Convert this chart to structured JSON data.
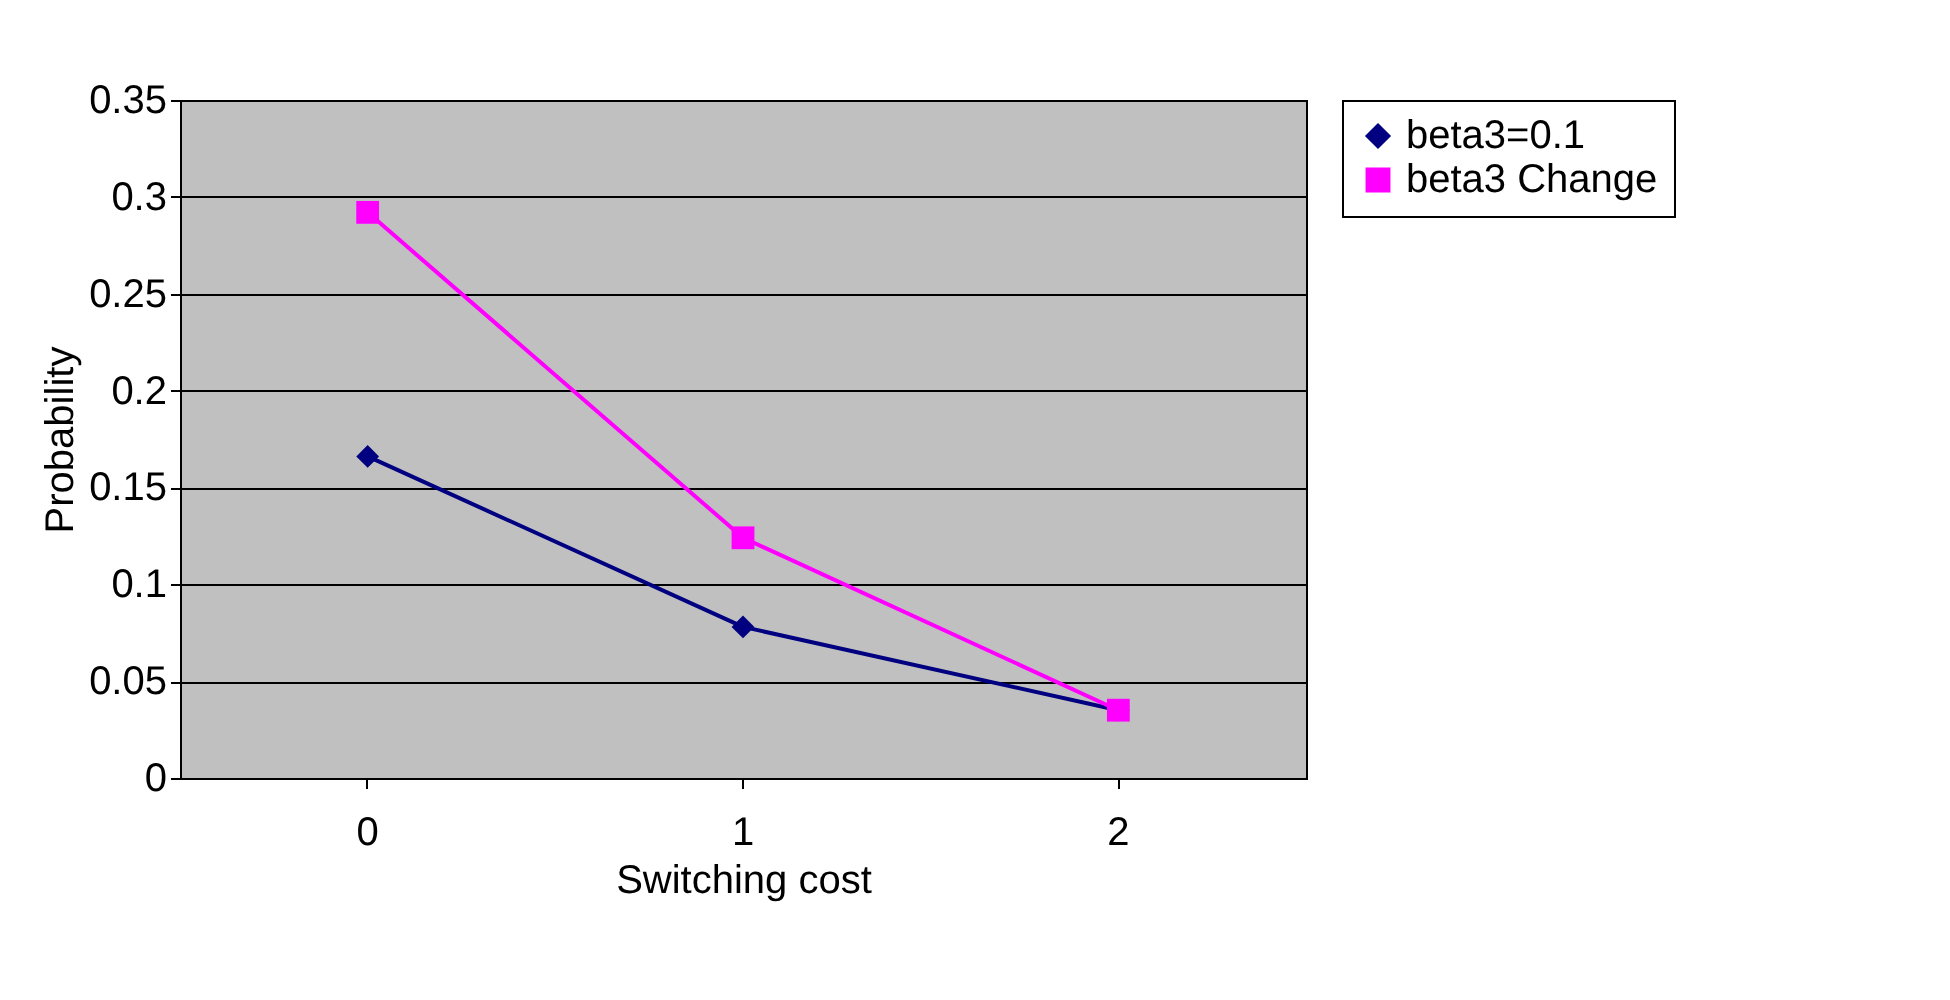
{
  "chart_data": {
    "type": "line",
    "xlabel": "Switching cost",
    "ylabel": "Probability",
    "categories": [
      "0",
      "1",
      "2"
    ],
    "series": [
      {
        "name": "beta3=0.1",
        "color": "#000080",
        "marker": "diamond",
        "values": [
          0.166,
          0.078,
          0.035
        ]
      },
      {
        "name": "beta3 Change",
        "color": "#ff00ff",
        "marker": "square",
        "values": [
          0.292,
          0.124,
          0.035
        ]
      }
    ],
    "ylim": [
      0,
      0.35
    ],
    "yticks": [
      0,
      0.05,
      0.1,
      0.15,
      0.2,
      0.25,
      0.3,
      0.35
    ],
    "grid": "y",
    "legend": "right"
  }
}
